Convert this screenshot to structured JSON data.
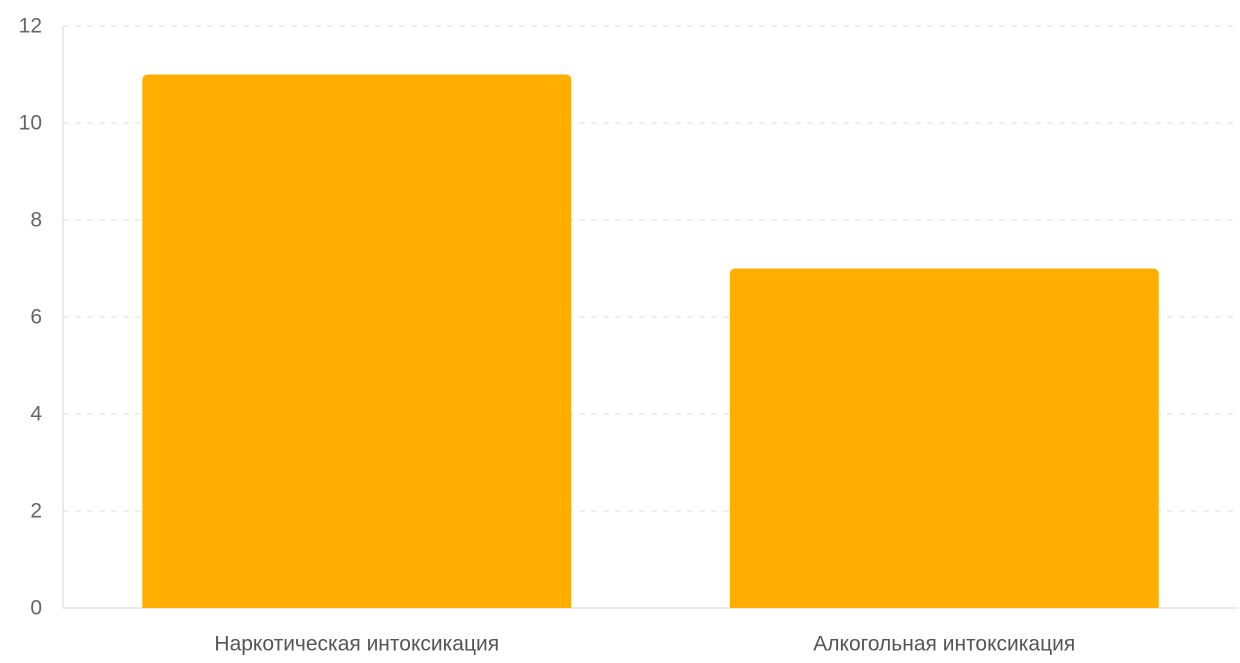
{
  "chart_data": {
    "type": "bar",
    "categories": [
      "Наркотическая интоксикация",
      "Алкогольная интоксикация"
    ],
    "values": [
      11,
      7
    ],
    "ylim": [
      0,
      12
    ],
    "yticks": [
      0,
      2,
      4,
      6,
      8,
      10,
      12
    ],
    "grid": true,
    "legend": "none",
    "colors": {
      "bar": "#FFAE00",
      "grid": "#e3e3e3",
      "axis": "#dddddd"
    }
  }
}
